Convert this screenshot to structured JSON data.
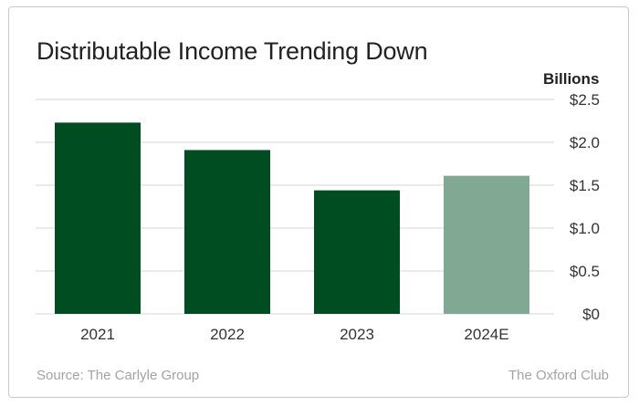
{
  "chart_data": {
    "type": "bar",
    "title": "Distributable Income Trending Down",
    "unit_label": "Billions",
    "categories": [
      "2021",
      "2022",
      "2023",
      "2024E"
    ],
    "values": [
      2.23,
      1.91,
      1.44,
      1.61
    ],
    "bar_colors": [
      "#004d22",
      "#004d22",
      "#004d22",
      "#80a893"
    ],
    "ylim": [
      0,
      2.5
    ],
    "yticks": [
      0,
      0.5,
      1.0,
      1.5,
      2.0,
      2.5
    ],
    "ytick_labels": [
      "$0",
      "$0.5",
      "$1.0",
      "$1.5",
      "$2.0",
      "$2.5"
    ],
    "y_axis_side": "right",
    "grid": true,
    "legend": false
  },
  "footer": {
    "source": "Source: The Carlyle Group",
    "brand": "The Oxford Club"
  }
}
